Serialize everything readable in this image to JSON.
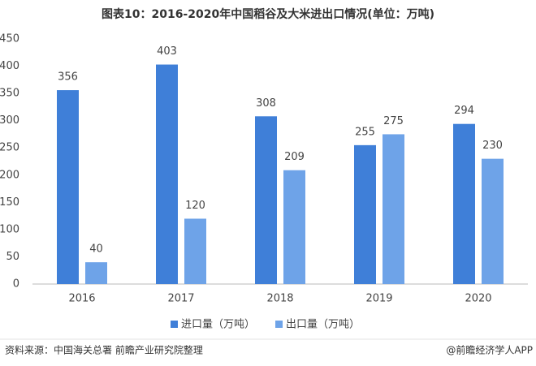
{
  "chart_data": {
    "type": "bar",
    "title": "图表10：2016-2020年中国稻谷及大米进出口情况(单位：万吨)",
    "categories": [
      "2016",
      "2017",
      "2018",
      "2019",
      "2020"
    ],
    "series": [
      {
        "name": "进口量（万吨）",
        "color": "#3f7fd8",
        "values": [
          356,
          403,
          308,
          255,
          294
        ]
      },
      {
        "name": "出口量（万吨）",
        "color": "#6ea3e8",
        "values": [
          40,
          120,
          209,
          275,
          230
        ]
      }
    ],
    "ylim": [
      0,
      450
    ],
    "yticks": [
      0,
      50,
      100,
      150,
      200,
      250,
      300,
      350,
      400,
      450
    ],
    "grid": false,
    "legend": "bottom",
    "source": "资料来源：中国海关总署 前瞻产业研究院整理",
    "credit": "@前瞻经济学人APP"
  }
}
